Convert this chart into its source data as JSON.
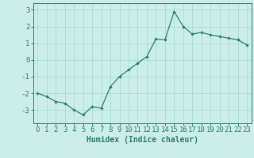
{
  "x": [
    0,
    1,
    2,
    3,
    4,
    5,
    6,
    7,
    8,
    9,
    10,
    11,
    12,
    13,
    14,
    15,
    16,
    17,
    18,
    19,
    20,
    21,
    22,
    23
  ],
  "y": [
    -2.0,
    -2.2,
    -2.5,
    -2.6,
    -3.0,
    -3.3,
    -2.8,
    -2.9,
    -1.6,
    -1.0,
    -0.6,
    -0.2,
    0.2,
    1.25,
    1.2,
    2.9,
    2.0,
    1.55,
    1.65,
    1.5,
    1.4,
    1.3,
    1.2,
    0.9
  ],
  "line_color": "#2e7d6e",
  "marker": "D",
  "marker_size": 2.2,
  "bg_color": "#cceee8",
  "grid_color": "#aaddd5",
  "xlabel": "Humidex (Indice chaleur)",
  "xlabel_fontsize": 7,
  "tick_fontsize": 6.5,
  "ylim": [
    -3.8,
    3.4
  ],
  "yticks": [
    -3,
    -2,
    -1,
    0,
    1,
    2,
    3
  ],
  "xticks": [
    0,
    1,
    2,
    3,
    4,
    5,
    6,
    7,
    8,
    9,
    10,
    11,
    12,
    13,
    14,
    15,
    16,
    17,
    18,
    19,
    20,
    21,
    22,
    23
  ]
}
